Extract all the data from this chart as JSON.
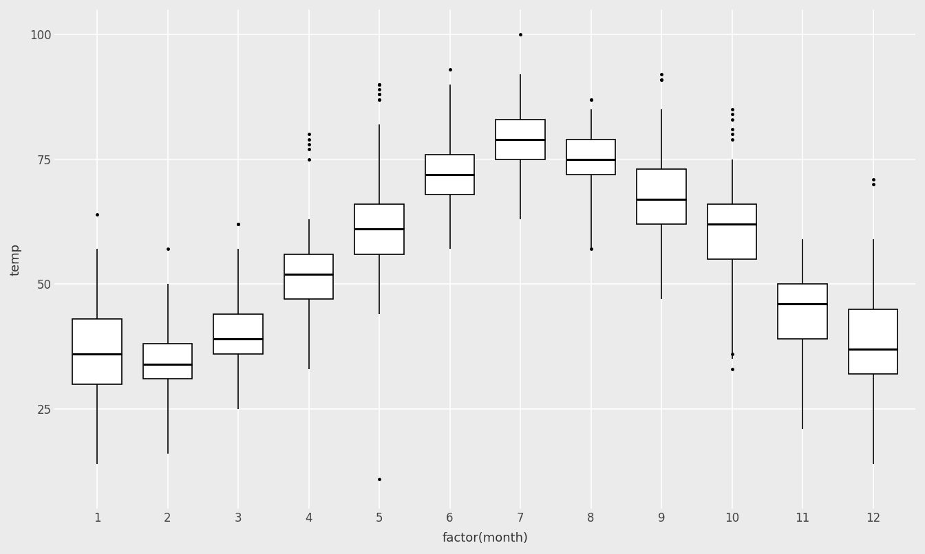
{
  "title": "",
  "xlabel": "factor(month)",
  "ylabel": "temp",
  "background_color": "#EBEBEB",
  "grid_color": "#FFFFFF",
  "box_color": "#FFFFFF",
  "line_color": "#000000",
  "months": [
    1,
    2,
    3,
    4,
    5,
    6,
    7,
    8,
    9,
    10,
    11,
    12
  ],
  "month_labels": [
    "1",
    "2",
    "3",
    "4",
    "5",
    "6",
    "7",
    "8",
    "9",
    "10",
    "11",
    "12"
  ],
  "ylim": [
    5,
    105
  ],
  "yticks": [
    25,
    50,
    75,
    100
  ],
  "box_stats": {
    "1": {
      "q1": 30.0,
      "median": 36.0,
      "q3": 43.0,
      "whislo": 14.0,
      "whishi": 57.0,
      "fliers": [
        64
      ]
    },
    "2": {
      "q1": 31.0,
      "median": 34.0,
      "q3": 38.0,
      "whislo": 16.0,
      "whishi": 50.0,
      "fliers": [
        57
      ]
    },
    "3": {
      "q1": 36.0,
      "median": 39.0,
      "q3": 44.0,
      "whislo": 25.0,
      "whishi": 57.0,
      "fliers": [
        62,
        62
      ]
    },
    "4": {
      "q1": 47.0,
      "median": 52.0,
      "q3": 56.0,
      "whislo": 33.0,
      "whishi": 63.0,
      "fliers": [
        75,
        77,
        78,
        79,
        80
      ]
    },
    "5": {
      "q1": 56.0,
      "median": 61.0,
      "q3": 66.0,
      "whislo": 44.0,
      "whishi": 82.0,
      "fliers": [
        11,
        87,
        87,
        88,
        88,
        89,
        90,
        90,
        90,
        90
      ]
    },
    "6": {
      "q1": 68.0,
      "median": 72.0,
      "q3": 76.0,
      "whislo": 57.0,
      "whishi": 90.0,
      "fliers": [
        93
      ]
    },
    "7": {
      "q1": 75.0,
      "median": 79.0,
      "q3": 83.0,
      "whislo": 63.0,
      "whishi": 92.0,
      "fliers": [
        100
      ]
    },
    "8": {
      "q1": 72.0,
      "median": 75.0,
      "q3": 79.0,
      "whislo": 57.0,
      "whishi": 85.0,
      "fliers": [
        57,
        87,
        87
      ]
    },
    "9": {
      "q1": 62.0,
      "median": 67.0,
      "q3": 73.0,
      "whislo": 47.0,
      "whishi": 85.0,
      "fliers": [
        91,
        91,
        92
      ]
    },
    "10": {
      "q1": 55.0,
      "median": 62.0,
      "q3": 66.0,
      "whislo": 35.0,
      "whishi": 75.0,
      "fliers": [
        33,
        36,
        79,
        80,
        81,
        83,
        84,
        85
      ]
    },
    "11": {
      "q1": 39.0,
      "median": 46.0,
      "q3": 50.0,
      "whislo": 21.0,
      "whishi": 59.0,
      "fliers": []
    },
    "12": {
      "q1": 32.0,
      "median": 37.0,
      "q3": 45.0,
      "whislo": 14.0,
      "whishi": 59.0,
      "fliers": [
        70,
        71
      ]
    }
  },
  "box_width": 0.7,
  "linewidth": 1.2,
  "median_linewidth": 2.2,
  "flier_size": 3.5,
  "label_fontsize": 13,
  "tick_fontsize": 12,
  "xlim": [
    0.4,
    12.6
  ]
}
